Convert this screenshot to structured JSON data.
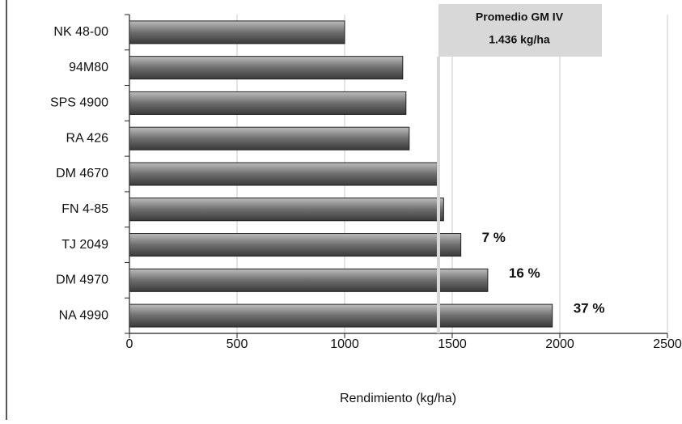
{
  "chart_data": {
    "type": "barh",
    "categories": [
      "NK 48-00",
      "94M80",
      "SPS 4900",
      "RA 426",
      "DM 4670",
      "FN 4-85",
      "TJ 2049",
      "DM 4970",
      "NA 4990"
    ],
    "values": [
      1000,
      1270,
      1285,
      1300,
      1430,
      1460,
      1540,
      1665,
      1965
    ],
    "bar_notes": [
      null,
      null,
      null,
      null,
      null,
      null,
      "7 %",
      "16 %",
      "37 %"
    ],
    "color": "#7a7a7a",
    "xlim": [
      0,
      2500
    ],
    "xticks": [
      0,
      500,
      1000,
      1500,
      2000,
      2500
    ],
    "xlabel": "Rendimiento (kg/ha)",
    "grid": true,
    "reference_line": {
      "title": "Promedio GM IV",
      "value": 1436,
      "label": "1.436 kg/ha",
      "color": "#d8d8d8"
    }
  }
}
